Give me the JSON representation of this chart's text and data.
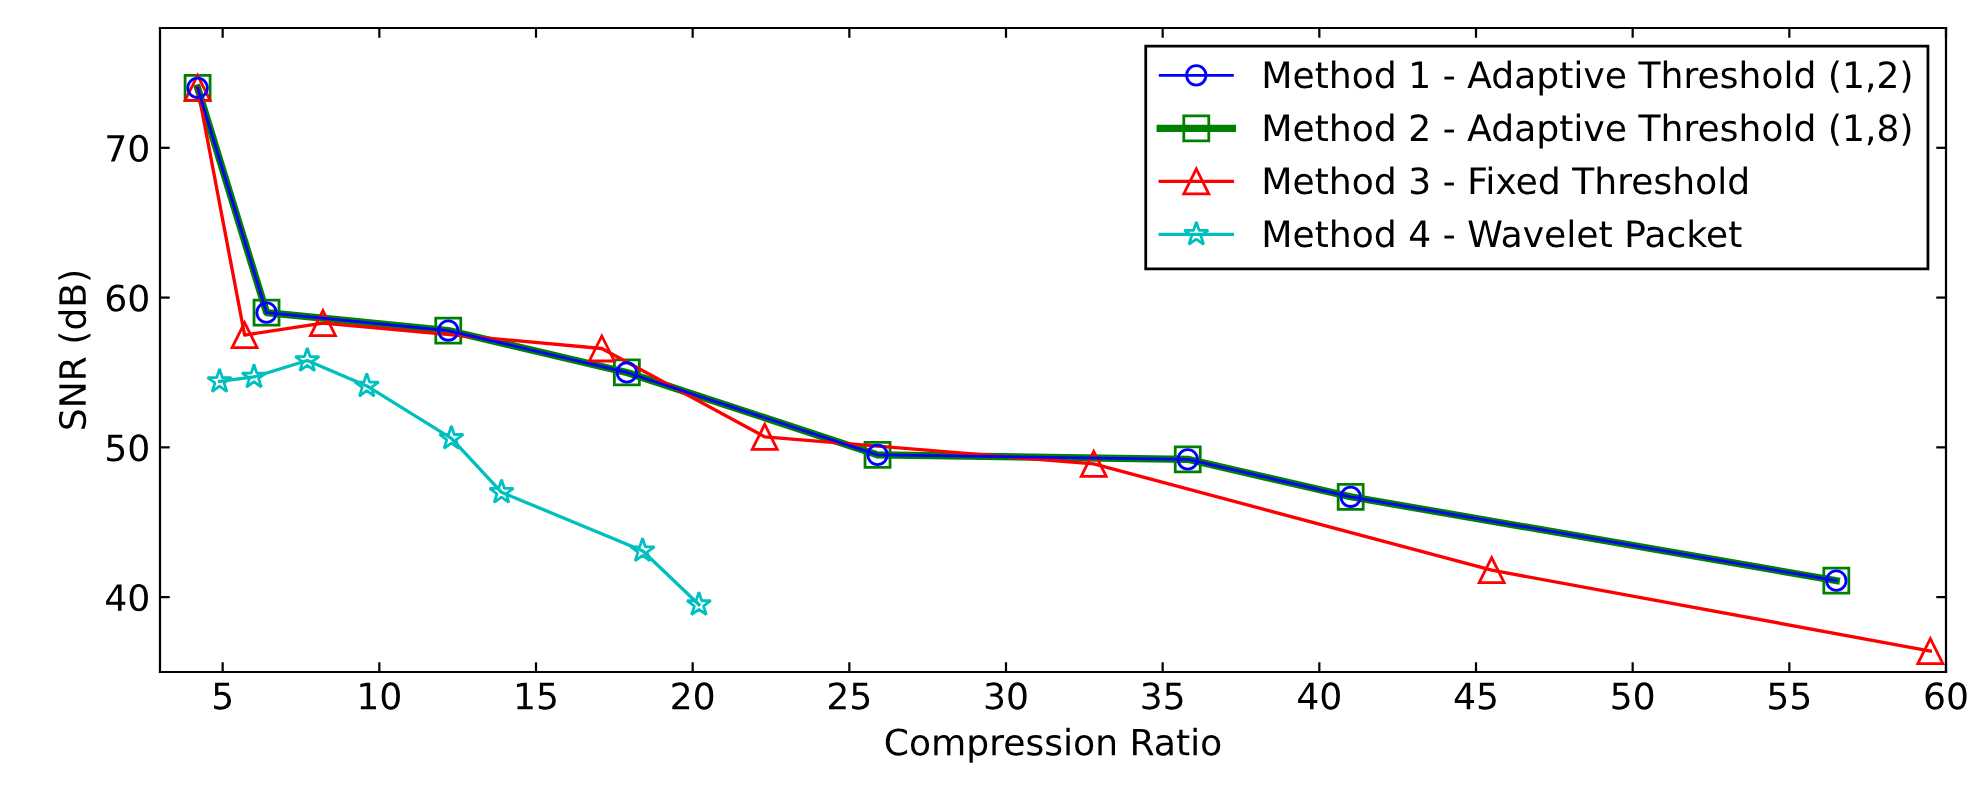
{
  "chart_data": {
    "type": "line",
    "xlabel": "Compression Ratio",
    "ylabel": "SNR (dB)",
    "xlim": [
      3,
      60
    ],
    "xticks": [
      5,
      10,
      15,
      20,
      25,
      30,
      35,
      40,
      45,
      50,
      55,
      60
    ],
    "ylim": [
      35,
      78
    ],
    "yticks": [
      40,
      50,
      60,
      70
    ],
    "grid": false,
    "legend": "top right",
    "series": [
      {
        "name": "Method 1 - Adaptive Threshold (1,2)",
        "color": "#0000ff",
        "marker": "circle",
        "x": [
          4.2,
          6.4,
          12.2,
          17.9,
          25.9,
          35.8,
          41.0,
          56.5
        ],
        "values": [
          74,
          59,
          57.8,
          55,
          49.5,
          49.2,
          46.7,
          41.1
        ]
      },
      {
        "name": "Method 2 - Adaptive Threshold (1,8)",
        "color": "#008000",
        "marker": "square",
        "x": [
          4.2,
          6.4,
          12.2,
          17.9,
          25.9,
          35.8,
          41.0,
          56.5
        ],
        "values": [
          74,
          59,
          57.8,
          55,
          49.5,
          49.2,
          46.7,
          41.1
        ]
      },
      {
        "name": "Method 3 - Fixed Threshold",
        "color": "#ff0000",
        "marker": "triangle",
        "x": [
          4.2,
          5.7,
          8.2,
          17.1,
          22.3,
          32.8,
          45.5,
          59.5
        ],
        "values": [
          74,
          57.5,
          58.3,
          56.6,
          50.7,
          48.9,
          41.8,
          36.4
        ]
      },
      {
        "name": "Method 4 - Wavelet Packet",
        "color": "#00bfbf",
        "marker": "star",
        "x": [
          4.9,
          6.0,
          7.7,
          9.6,
          12.3,
          13.9,
          18.4,
          20.2
        ],
        "values": [
          54.4,
          54.7,
          55.8,
          54.1,
          50.6,
          47.0,
          43.1,
          39.5
        ]
      }
    ]
  }
}
